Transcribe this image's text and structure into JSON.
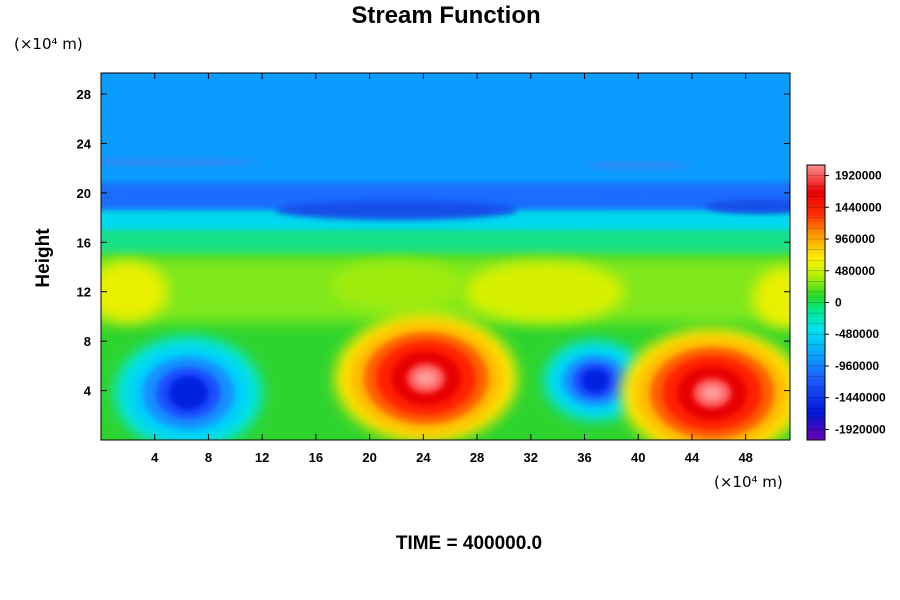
{
  "chart_data": {
    "type": "heatmap",
    "title": "Stream Function",
    "ylabel": "Height",
    "xlabel": "",
    "x_unit": "(×10⁴ m)",
    "y_unit": "(×10⁴ m)",
    "time_label": "TIME = 400000.0",
    "xlim": [
      0,
      51.3
    ],
    "ylim": [
      0,
      29.7
    ],
    "x_ticks": [
      4,
      8,
      12,
      16,
      20,
      24,
      28,
      32,
      36,
      40,
      44,
      48
    ],
    "y_ticks": [
      4,
      8,
      12,
      16,
      20,
      24,
      28
    ],
    "colorbar": {
      "min": -2080000,
      "max": 2080000,
      "tick_values": [
        1920000,
        1440000,
        960000,
        480000,
        0,
        -480000,
        -960000,
        -1440000,
        -1920000
      ],
      "tick_labels": [
        "1920000",
        "1440000",
        "960000",
        "480000",
        "0",
        "-480000",
        "-960000",
        "-1440000",
        "-1920000"
      ]
    },
    "features": [
      {
        "kind": "low",
        "x": 6.5,
        "y": 3.8,
        "value": -1500000
      },
      {
        "kind": "high",
        "x": 24.2,
        "y": 5.0,
        "value": 1900000
      },
      {
        "kind": "low",
        "x": 36.8,
        "y": 4.8,
        "value": -1200000
      },
      {
        "kind": "high",
        "x": 45.5,
        "y": 3.8,
        "value": 1800000
      }
    ]
  }
}
